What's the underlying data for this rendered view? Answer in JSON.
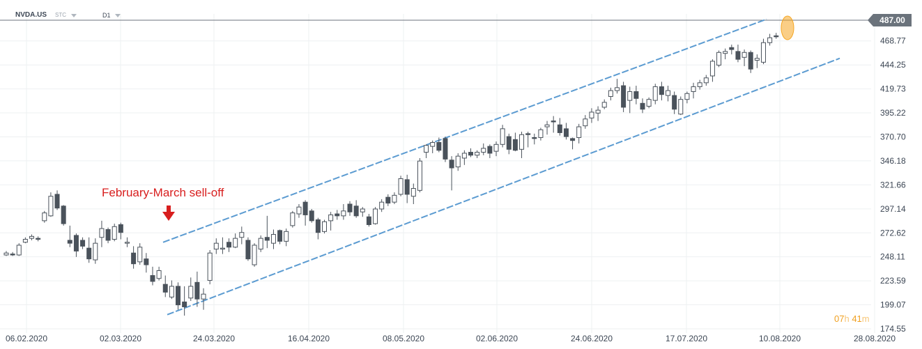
{
  "header": {
    "symbol": "NVDA.US",
    "symbol_sub": "STC",
    "timeframe": "D1"
  },
  "current_price_label": "487.00",
  "annotation": {
    "text": "February-March sell-off"
  },
  "timer": {
    "hours": "07",
    "h_unit": "h",
    "minutes": "41",
    "m_unit": "m"
  },
  "colors": {
    "bear": "#4a525b",
    "bull_body": "#ffffff",
    "candle_outline": "#4a525b",
    "channel": "#5b9bd1",
    "annotation": "#d81e1e",
    "grid": "#eef0f2",
    "price_line": "#6b737c",
    "highlight": "#f5a623"
  },
  "chart_data": {
    "type": "candlestick",
    "y_ticks": [
      174.55,
      199.07,
      223.59,
      248.11,
      272.62,
      297.14,
      321.66,
      346.18,
      370.7,
      395.22,
      419.73,
      444.25,
      468.77
    ],
    "ylim": [
      168,
      495
    ],
    "x_tick_labels": [
      "06.02.2020",
      "02.03.2020",
      "24.03.2020",
      "16.04.2020",
      "08.05.2020",
      "02.06.2020",
      "24.06.2020",
      "17.07.2020",
      "10.08.2020",
      "28.08.2020"
    ],
    "current_price": 487.0,
    "ohlc": [
      [
        250,
        254,
        249,
        252
      ],
      [
        251,
        253,
        249,
        250
      ],
      [
        250,
        262,
        249,
        260
      ],
      [
        263,
        268,
        262,
        266
      ],
      [
        267,
        271,
        265,
        269
      ],
      [
        267,
        269,
        264,
        266
      ],
      [
        285,
        295,
        283,
        293
      ],
      [
        290,
        314,
        289,
        310
      ],
      [
        312,
        316,
        296,
        298
      ],
      [
        300,
        301,
        280,
        282
      ],
      [
        265,
        280,
        258,
        262
      ],
      [
        270,
        272,
        248,
        254
      ],
      [
        265,
        268,
        256,
        259
      ],
      [
        257,
        268,
        242,
        246
      ],
      [
        245,
        267,
        241,
        262
      ],
      [
        268,
        285,
        258,
        277
      ],
      [
        276,
        278,
        262,
        265
      ],
      [
        266,
        282,
        264,
        279
      ],
      [
        281,
        283,
        266,
        273
      ],
      [
        262,
        268,
        258,
        263
      ],
      [
        252,
        259,
        236,
        241
      ],
      [
        243,
        262,
        240,
        258
      ],
      [
        246,
        252,
        232,
        240
      ],
      [
        229,
        238,
        219,
        223
      ],
      [
        226,
        238,
        224,
        234
      ],
      [
        220,
        229,
        207,
        212
      ],
      [
        207,
        224,
        205,
        218
      ],
      [
        218,
        222,
        194,
        199
      ],
      [
        202,
        218,
        188,
        197
      ],
      [
        206,
        227,
        203,
        218
      ],
      [
        222,
        233,
        197,
        205
      ],
      [
        205,
        216,
        194,
        210
      ],
      [
        224,
        255,
        220,
        252
      ],
      [
        256,
        267,
        251,
        262
      ],
      [
        256,
        268,
        251,
        257
      ],
      [
        263,
        267,
        253,
        258
      ],
      [
        258,
        272,
        257,
        267
      ],
      [
        268,
        279,
        261,
        273
      ],
      [
        265,
        268,
        244,
        246
      ],
      [
        240,
        262,
        238,
        260
      ],
      [
        256,
        270,
        253,
        267
      ],
      [
        268,
        290,
        257,
        265
      ],
      [
        262,
        276,
        256,
        271
      ],
      [
        275,
        276,
        261,
        264
      ],
      [
        264,
        277,
        259,
        274
      ],
      [
        280,
        295,
        278,
        293
      ],
      [
        292,
        302,
        288,
        299
      ],
      [
        304,
        306,
        280,
        291
      ],
      [
        295,
        297,
        283,
        285
      ],
      [
        286,
        288,
        266,
        273
      ],
      [
        274,
        286,
        272,
        284
      ],
      [
        285,
        294,
        275,
        291
      ],
      [
        292,
        296,
        286,
        290
      ],
      [
        290,
        302,
        286,
        295
      ],
      [
        302,
        305,
        290,
        294
      ],
      [
        300,
        306,
        288,
        290
      ],
      [
        294,
        299,
        289,
        297
      ],
      [
        289,
        292,
        279,
        281
      ],
      [
        282,
        299,
        281,
        297
      ],
      [
        297,
        307,
        294,
        304
      ],
      [
        309,
        312,
        300,
        303
      ],
      [
        304,
        314,
        302,
        311
      ],
      [
        312,
        331,
        310,
        328
      ],
      [
        327,
        332,
        303,
        312
      ],
      [
        310,
        323,
        302,
        318
      ],
      [
        316,
        349,
        314,
        346
      ],
      [
        355,
        363,
        349,
        362
      ],
      [
        361,
        367,
        354,
        365
      ],
      [
        365,
        370,
        355,
        357
      ],
      [
        369,
        371,
        345,
        348
      ],
      [
        347,
        351,
        316,
        339
      ],
      [
        340,
        354,
        336,
        351
      ],
      [
        349,
        357,
        342,
        354
      ],
      [
        355,
        359,
        350,
        352
      ],
      [
        352,
        357,
        349,
        355
      ],
      [
        355,
        364,
        352,
        359
      ],
      [
        361,
        363,
        349,
        354
      ],
      [
        356,
        366,
        351,
        363
      ],
      [
        363,
        383,
        360,
        379
      ],
      [
        371,
        374,
        353,
        358
      ],
      [
        368,
        375,
        356,
        357
      ],
      [
        358,
        376,
        349,
        373
      ],
      [
        374,
        376,
        360,
        373
      ],
      [
        370,
        374,
        363,
        369
      ],
      [
        370,
        380,
        367,
        378
      ],
      [
        381,
        387,
        373,
        383
      ],
      [
        387,
        392,
        375,
        386
      ],
      [
        383,
        390,
        372,
        375
      ],
      [
        379,
        385,
        368,
        371
      ],
      [
        369,
        370,
        358,
        367
      ],
      [
        370,
        384,
        364,
        381
      ],
      [
        382,
        393,
        379,
        389
      ],
      [
        390,
        400,
        385,
        396
      ],
      [
        395,
        402,
        387,
        398
      ],
      [
        401,
        409,
        399,
        406
      ],
      [
        412,
        421,
        408,
        418
      ],
      [
        418,
        430,
        415,
        421
      ],
      [
        423,
        427,
        396,
        401
      ],
      [
        408,
        422,
        395,
        417
      ],
      [
        417,
        423,
        404,
        410
      ],
      [
        405,
        410,
        395,
        399
      ],
      [
        402,
        411,
        400,
        409
      ],
      [
        408,
        425,
        404,
        422
      ],
      [
        422,
        427,
        408,
        414
      ],
      [
        413,
        423,
        407,
        418
      ],
      [
        413,
        417,
        394,
        399
      ],
      [
        394,
        412,
        393,
        409
      ],
      [
        409,
        417,
        405,
        415
      ],
      [
        417,
        426,
        410,
        422
      ],
      [
        422,
        429,
        419,
        426
      ],
      [
        426,
        434,
        423,
        431
      ],
      [
        433,
        450,
        427,
        448
      ],
      [
        444,
        459,
        442,
        457
      ],
      [
        456,
        461,
        450,
        458
      ],
      [
        462,
        465,
        455,
        460
      ],
      [
        458,
        465,
        447,
        450
      ],
      [
        452,
        460,
        443,
        457
      ],
      [
        457,
        459,
        436,
        440
      ],
      [
        449,
        455,
        441,
        451
      ],
      [
        447,
        471,
        445,
        467
      ],
      [
        467,
        476,
        464,
        472
      ],
      [
        474,
        477,
        471,
        473
      ]
    ]
  }
}
